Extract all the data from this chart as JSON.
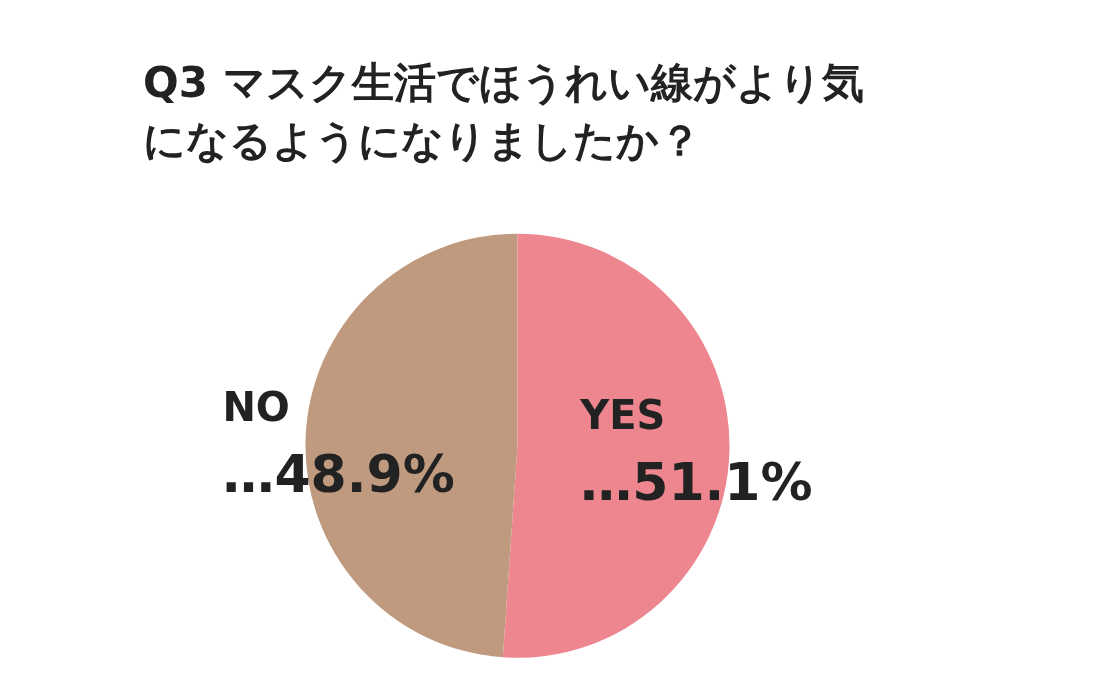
{
  "chart_data": {
    "type": "pie",
    "title": "Q3 マスク生活でほうれい線がより気になるようになりましたか？",
    "categories": [
      "YES",
      "NO"
    ],
    "values": [
      51.1,
      48.9
    ],
    "value_labels": [
      "…51.1%",
      "…48.9%"
    ],
    "colors": [
      "#ee868f",
      "#bf9a7f"
    ],
    "legend": false
  }
}
